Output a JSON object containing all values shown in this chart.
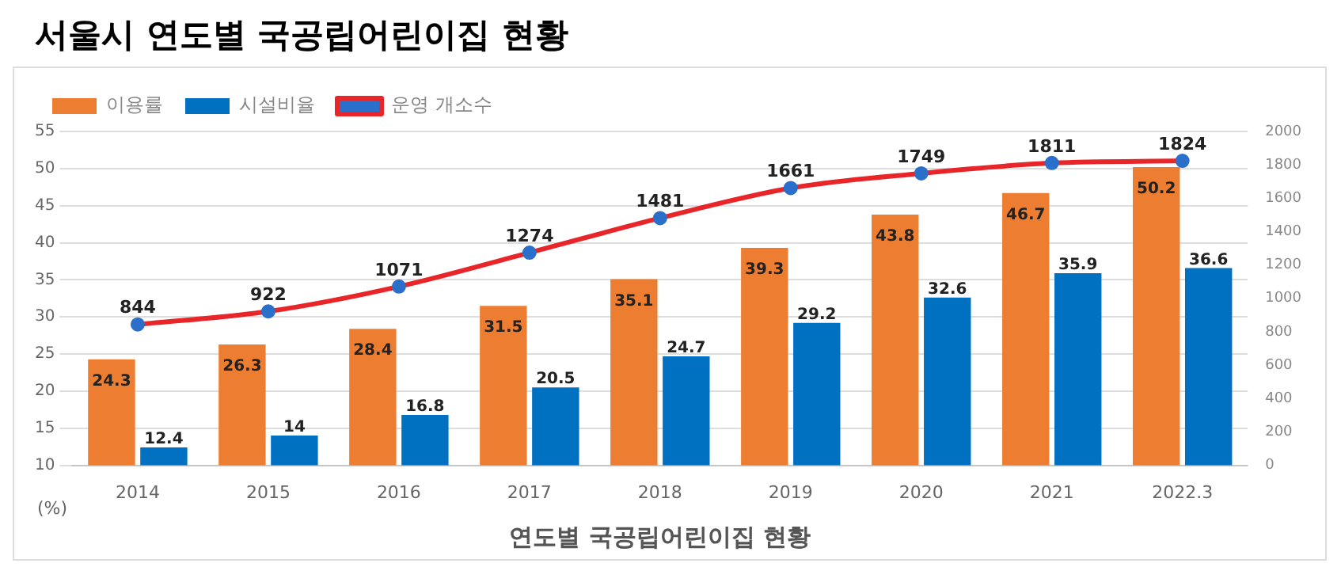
{
  "chart_data": {
    "type": "bar",
    "title": "서울시 연도별 국공립어린이집 현황",
    "xlabel": "연도별 국공립어린이집 현황",
    "ylabel": "(%)",
    "categories": [
      "2014",
      "2015",
      "2016",
      "2017",
      "2018",
      "2019",
      "2020",
      "2021",
      "2022.3"
    ],
    "series": [
      {
        "name": "이용률",
        "color": "#ed7d31",
        "values": [
          24.3,
          26.3,
          28.4,
          31.5,
          35.1,
          39.3,
          43.8,
          46.7,
          50.2
        ]
      },
      {
        "name": "시설비율",
        "color": "#0070c0",
        "values": [
          12.4,
          14,
          16.8,
          20.5,
          24.7,
          29.2,
          32.6,
          35.9,
          36.6
        ]
      },
      {
        "name": "운영 개소수",
        "type": "line",
        "axis": "y2",
        "color": "#e8262a",
        "values": [
          844,
          922,
          1071,
          1274,
          1481,
          1661,
          1749,
          1811,
          1824
        ]
      }
    ],
    "ylim": [
      10,
      55
    ],
    "yticks": [
      10,
      15,
      20,
      25,
      30,
      35,
      40,
      45,
      50,
      55
    ],
    "y2lim": [
      0,
      2000
    ],
    "y2ticks": [
      0,
      200,
      400,
      600,
      800,
      1000,
      1200,
      1400,
      1600,
      1800,
      2000
    ],
    "grid": "y",
    "legend": "top",
    "marker": "circle",
    "line_style": "solid",
    "data_labels": true
  }
}
